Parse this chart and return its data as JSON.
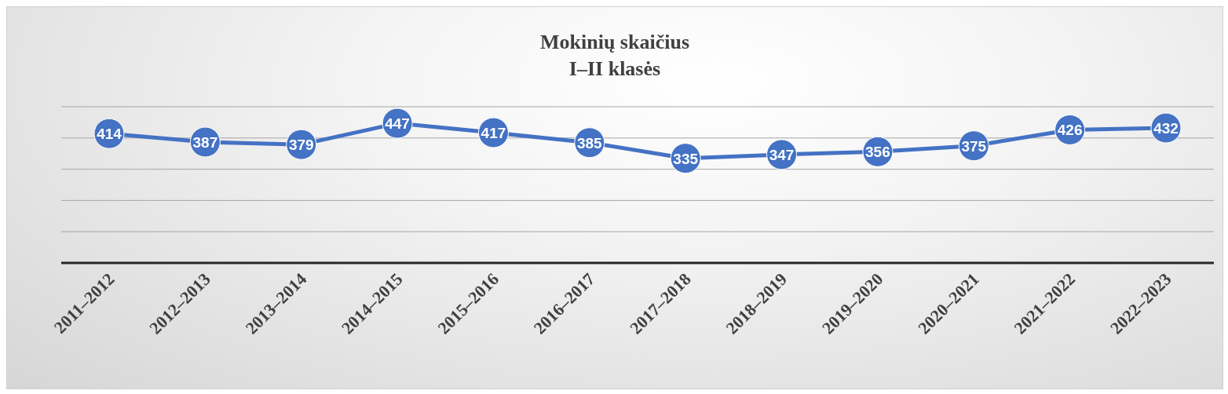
{
  "chart_data": {
    "type": "line",
    "title": "Mokinių skaičius",
    "subtitle": "I–II klasės",
    "categories": [
      "2011–2012",
      "2012–2013",
      "2013–2014",
      "2014–2015",
      "2015–2016",
      "2016–2017",
      "2017–2018",
      "2018–2019",
      "2019–2020",
      "2020–2021",
      "2021–2022",
      "2022–2023"
    ],
    "series": [
      {
        "color": "#4472c4",
        "values": [
          414,
          387,
          379,
          447,
          417,
          385,
          335,
          347,
          356,
          375,
          426,
          432
        ]
      }
    ],
    "ylim": [
      0,
      500
    ],
    "tick_labels": "x",
    "grid": "y",
    "marker": "circle",
    "line_style": "solid",
    "data_labels": true
  }
}
